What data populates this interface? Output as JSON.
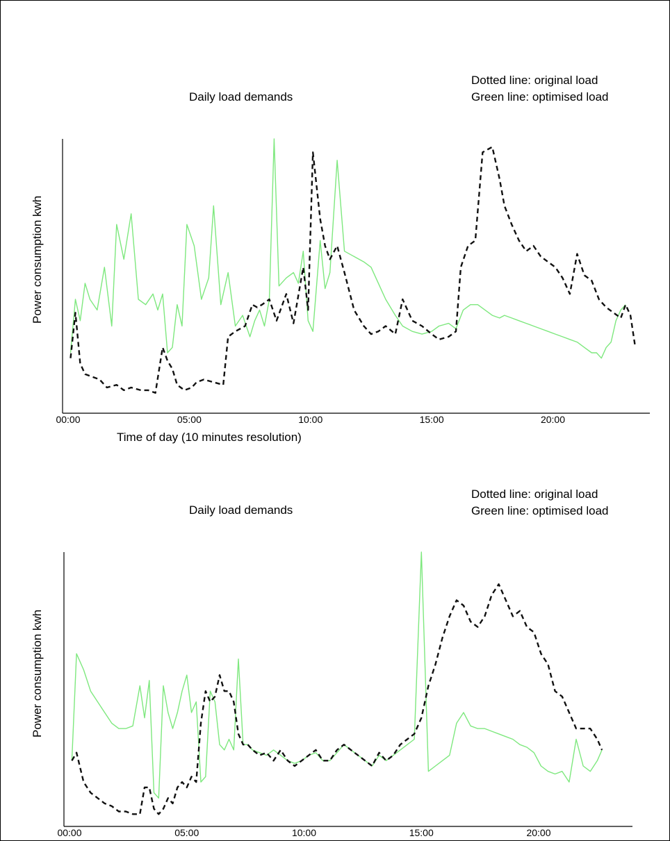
{
  "legend": {
    "line1": "Dotted line: original load",
    "line2": "Green line: optimised load"
  },
  "colors": {
    "original": "#111111",
    "optimised": "#7ee87e",
    "axis": "#000000"
  },
  "chart_data": [
    {
      "type": "line",
      "title": "Daily load demands",
      "xlabel": "Time of day (10 minutes resolution)",
      "ylabel": "Power consumption kwh",
      "x_tick_labels": [
        "00:00",
        "05:00",
        "10:00",
        "15:00",
        "20:00"
      ],
      "x_ticks": [
        0,
        5,
        10,
        15,
        20
      ],
      "xlim": [
        0,
        24
      ],
      "ylim": [
        0,
        100
      ],
      "grid": false,
      "legend_position": "top-right",
      "series": [
        {
          "key": "original",
          "style": "dashed",
          "x": [
            0.1,
            0.3,
            0.5,
            0.7,
            1.0,
            1.3,
            1.6,
            2.0,
            2.3,
            2.6,
            3.0,
            3.3,
            3.6,
            3.9,
            4.1,
            4.3,
            4.5,
            4.8,
            5.1,
            5.3,
            5.6,
            6.0,
            6.4,
            6.6,
            6.9,
            7.3,
            7.6,
            7.8,
            8.0,
            8.3,
            8.6,
            9.0,
            9.3,
            9.7,
            9.9,
            10.1,
            10.4,
            10.6,
            10.8,
            11.1,
            11.4,
            11.8,
            12.2,
            12.5,
            12.8,
            13.1,
            13.5,
            13.8,
            14.2,
            14.6,
            15.0,
            15.3,
            15.7,
            16.0,
            16.2,
            16.5,
            16.8,
            17.1,
            17.3,
            17.5,
            17.8,
            18.0,
            18.3,
            18.6,
            18.9,
            19.2,
            19.5,
            19.8,
            20.1,
            20.4,
            20.7,
            21.0,
            21.3,
            21.6,
            21.9,
            22.2,
            22.5,
            22.8,
            23.0,
            23.2,
            23.4
          ],
          "values": [
            18,
            35,
            16,
            12,
            11,
            10,
            7,
            8,
            6,
            7,
            6,
            6,
            5,
            22,
            17,
            14,
            8,
            6,
            7,
            9,
            10,
            9,
            8,
            26,
            28,
            30,
            38,
            37,
            38,
            40,
            32,
            42,
            31,
            52,
            36,
            95,
            70,
            60,
            55,
            60,
            50,
            36,
            30,
            27,
            28,
            30,
            27,
            40,
            32,
            30,
            27,
            25,
            26,
            28,
            52,
            60,
            62,
            95,
            96,
            97,
            85,
            75,
            68,
            62,
            58,
            60,
            56,
            54,
            52,
            48,
            42,
            57,
            49,
            47,
            40,
            37,
            35,
            33,
            38,
            34,
            22
          ]
        },
        {
          "key": "optimised",
          "style": "solid",
          "x": [
            0.1,
            0.3,
            0.5,
            0.7,
            0.9,
            1.2,
            1.5,
            1.8,
            2.0,
            2.3,
            2.6,
            2.9,
            3.2,
            3.5,
            3.7,
            3.9,
            4.1,
            4.3,
            4.5,
            4.7,
            4.9,
            5.2,
            5.5,
            5.8,
            6.0,
            6.3,
            6.6,
            6.9,
            7.2,
            7.5,
            7.7,
            7.9,
            8.1,
            8.3,
            8.5,
            8.7,
            9.0,
            9.3,
            9.5,
            9.7,
            9.9,
            10.1,
            10.4,
            10.6,
            10.8,
            11.1,
            11.4,
            11.8,
            12.2,
            12.5,
            12.8,
            13.1,
            13.5,
            13.8,
            14.2,
            14.6,
            15.0,
            15.3,
            15.7,
            16.0,
            16.3,
            16.6,
            16.9,
            17.2,
            17.5,
            17.8,
            18.0,
            18.3,
            18.6,
            18.9,
            19.2,
            19.5,
            19.8,
            20.1,
            20.4,
            20.7,
            21.0,
            21.3,
            21.6,
            21.8,
            22.0,
            22.2,
            22.4,
            22.6,
            22.8,
            23.0
          ],
          "values": [
            20,
            40,
            32,
            46,
            40,
            36,
            52,
            30,
            68,
            55,
            72,
            40,
            38,
            42,
            36,
            42,
            20,
            22,
            38,
            30,
            68,
            60,
            40,
            48,
            75,
            38,
            50,
            30,
            34,
            26,
            32,
            36,
            30,
            40,
            100,
            45,
            48,
            50,
            46,
            58,
            32,
            28,
            62,
            44,
            50,
            92,
            58,
            56,
            54,
            52,
            46,
            40,
            34,
            30,
            28,
            27,
            28,
            30,
            31,
            29,
            36,
            38,
            38,
            36,
            34,
            33,
            34,
            33,
            32,
            31,
            30,
            29,
            28,
            27,
            26,
            25,
            24,
            22,
            20,
            20,
            18,
            22,
            24,
            32,
            36,
            38
          ]
        }
      ]
    },
    {
      "type": "line",
      "title": "Daily load demands",
      "xlabel": "",
      "ylabel": "Power consumption kwh",
      "x_tick_labels": [
        "00:00",
        "05:00",
        "10:00",
        "15:00",
        "20:00"
      ],
      "x_ticks": [
        0,
        5,
        10,
        15,
        20
      ],
      "xlim": [
        0,
        24
      ],
      "ylim": [
        0,
        100
      ],
      "grid": false,
      "legend_position": "top-right",
      "series": [
        {
          "key": "original",
          "style": "dashed",
          "x": [
            0.1,
            0.3,
            0.6,
            0.9,
            1.2,
            1.5,
            1.8,
            2.1,
            2.4,
            2.7,
            3.0,
            3.2,
            3.4,
            3.6,
            3.8,
            4.0,
            4.2,
            4.4,
            4.6,
            4.8,
            5.0,
            5.2,
            5.4,
            5.6,
            5.8,
            6.0,
            6.2,
            6.4,
            6.6,
            6.8,
            7.0,
            7.2,
            7.4,
            7.6,
            7.8,
            8.1,
            8.4,
            8.7,
            9.0,
            9.3,
            9.6,
            9.9,
            10.2,
            10.5,
            10.8,
            11.1,
            11.4,
            11.7,
            12.0,
            12.3,
            12.6,
            12.9,
            13.2,
            13.5,
            13.8,
            14.1,
            14.4,
            14.7,
            15.0,
            15.3,
            15.6,
            15.9,
            16.2,
            16.5,
            16.8,
            17.1,
            17.4,
            17.7,
            18.0,
            18.3,
            18.6,
            18.9,
            19.2,
            19.5,
            19.8,
            20.1,
            20.4,
            20.7,
            21.0,
            21.3,
            21.6,
            21.9,
            22.2,
            22.5,
            22.7
          ],
          "values": [
            22,
            25,
            14,
            10,
            8,
            6,
            5,
            3,
            3,
            2,
            2,
            12,
            12,
            4,
            2,
            4,
            8,
            6,
            12,
            14,
            12,
            16,
            14,
            36,
            48,
            44,
            46,
            54,
            48,
            48,
            44,
            32,
            28,
            28,
            26,
            24,
            25,
            22,
            26,
            22,
            20,
            22,
            24,
            26,
            22,
            22,
            26,
            28,
            26,
            24,
            22,
            20,
            25,
            22,
            24,
            28,
            30,
            32,
            38,
            50,
            58,
            68,
            76,
            82,
            80,
            74,
            72,
            76,
            84,
            88,
            82,
            76,
            78,
            72,
            70,
            62,
            58,
            48,
            46,
            40,
            34,
            34,
            34,
            30,
            26
          ]
        },
        {
          "key": "optimised",
          "style": "solid",
          "x": [
            0.1,
            0.3,
            0.6,
            0.9,
            1.2,
            1.5,
            1.8,
            2.1,
            2.4,
            2.7,
            3.0,
            3.2,
            3.4,
            3.6,
            3.8,
            4.0,
            4.2,
            4.4,
            4.6,
            4.8,
            5.0,
            5.2,
            5.4,
            5.6,
            5.8,
            6.0,
            6.2,
            6.4,
            6.6,
            6.8,
            7.0,
            7.2,
            7.4,
            7.6,
            7.8,
            8.1,
            8.4,
            8.7,
            9.0,
            9.3,
            9.6,
            9.9,
            10.2,
            10.5,
            10.8,
            11.1,
            11.4,
            11.7,
            12.0,
            12.3,
            12.6,
            12.9,
            13.2,
            13.5,
            13.8,
            14.1,
            14.4,
            14.7,
            15.0,
            15.3,
            15.6,
            15.9,
            16.2,
            16.5,
            16.8,
            17.1,
            17.4,
            17.7,
            18.0,
            18.3,
            18.6,
            18.9,
            19.2,
            19.5,
            19.8,
            20.1,
            20.4,
            20.7,
            21.0,
            21.3,
            21.6,
            21.9,
            22.2,
            22.5,
            22.7
          ],
          "values": [
            22,
            62,
            56,
            48,
            44,
            40,
            36,
            34,
            34,
            35,
            50,
            38,
            52,
            10,
            8,
            50,
            40,
            34,
            40,
            48,
            54,
            40,
            44,
            14,
            16,
            48,
            44,
            28,
            26,
            30,
            26,
            60,
            28,
            28,
            26,
            25,
            24,
            26,
            24,
            22,
            21,
            22,
            24,
            25,
            22,
            22,
            25,
            28,
            26,
            24,
            22,
            20,
            24,
            22,
            24,
            26,
            28,
            30,
            100,
            18,
            20,
            22,
            24,
            36,
            40,
            35,
            34,
            34,
            33,
            32,
            31,
            30,
            28,
            27,
            25,
            20,
            18,
            17,
            18,
            14,
            30,
            20,
            18,
            22,
            26
          ]
        }
      ]
    }
  ]
}
